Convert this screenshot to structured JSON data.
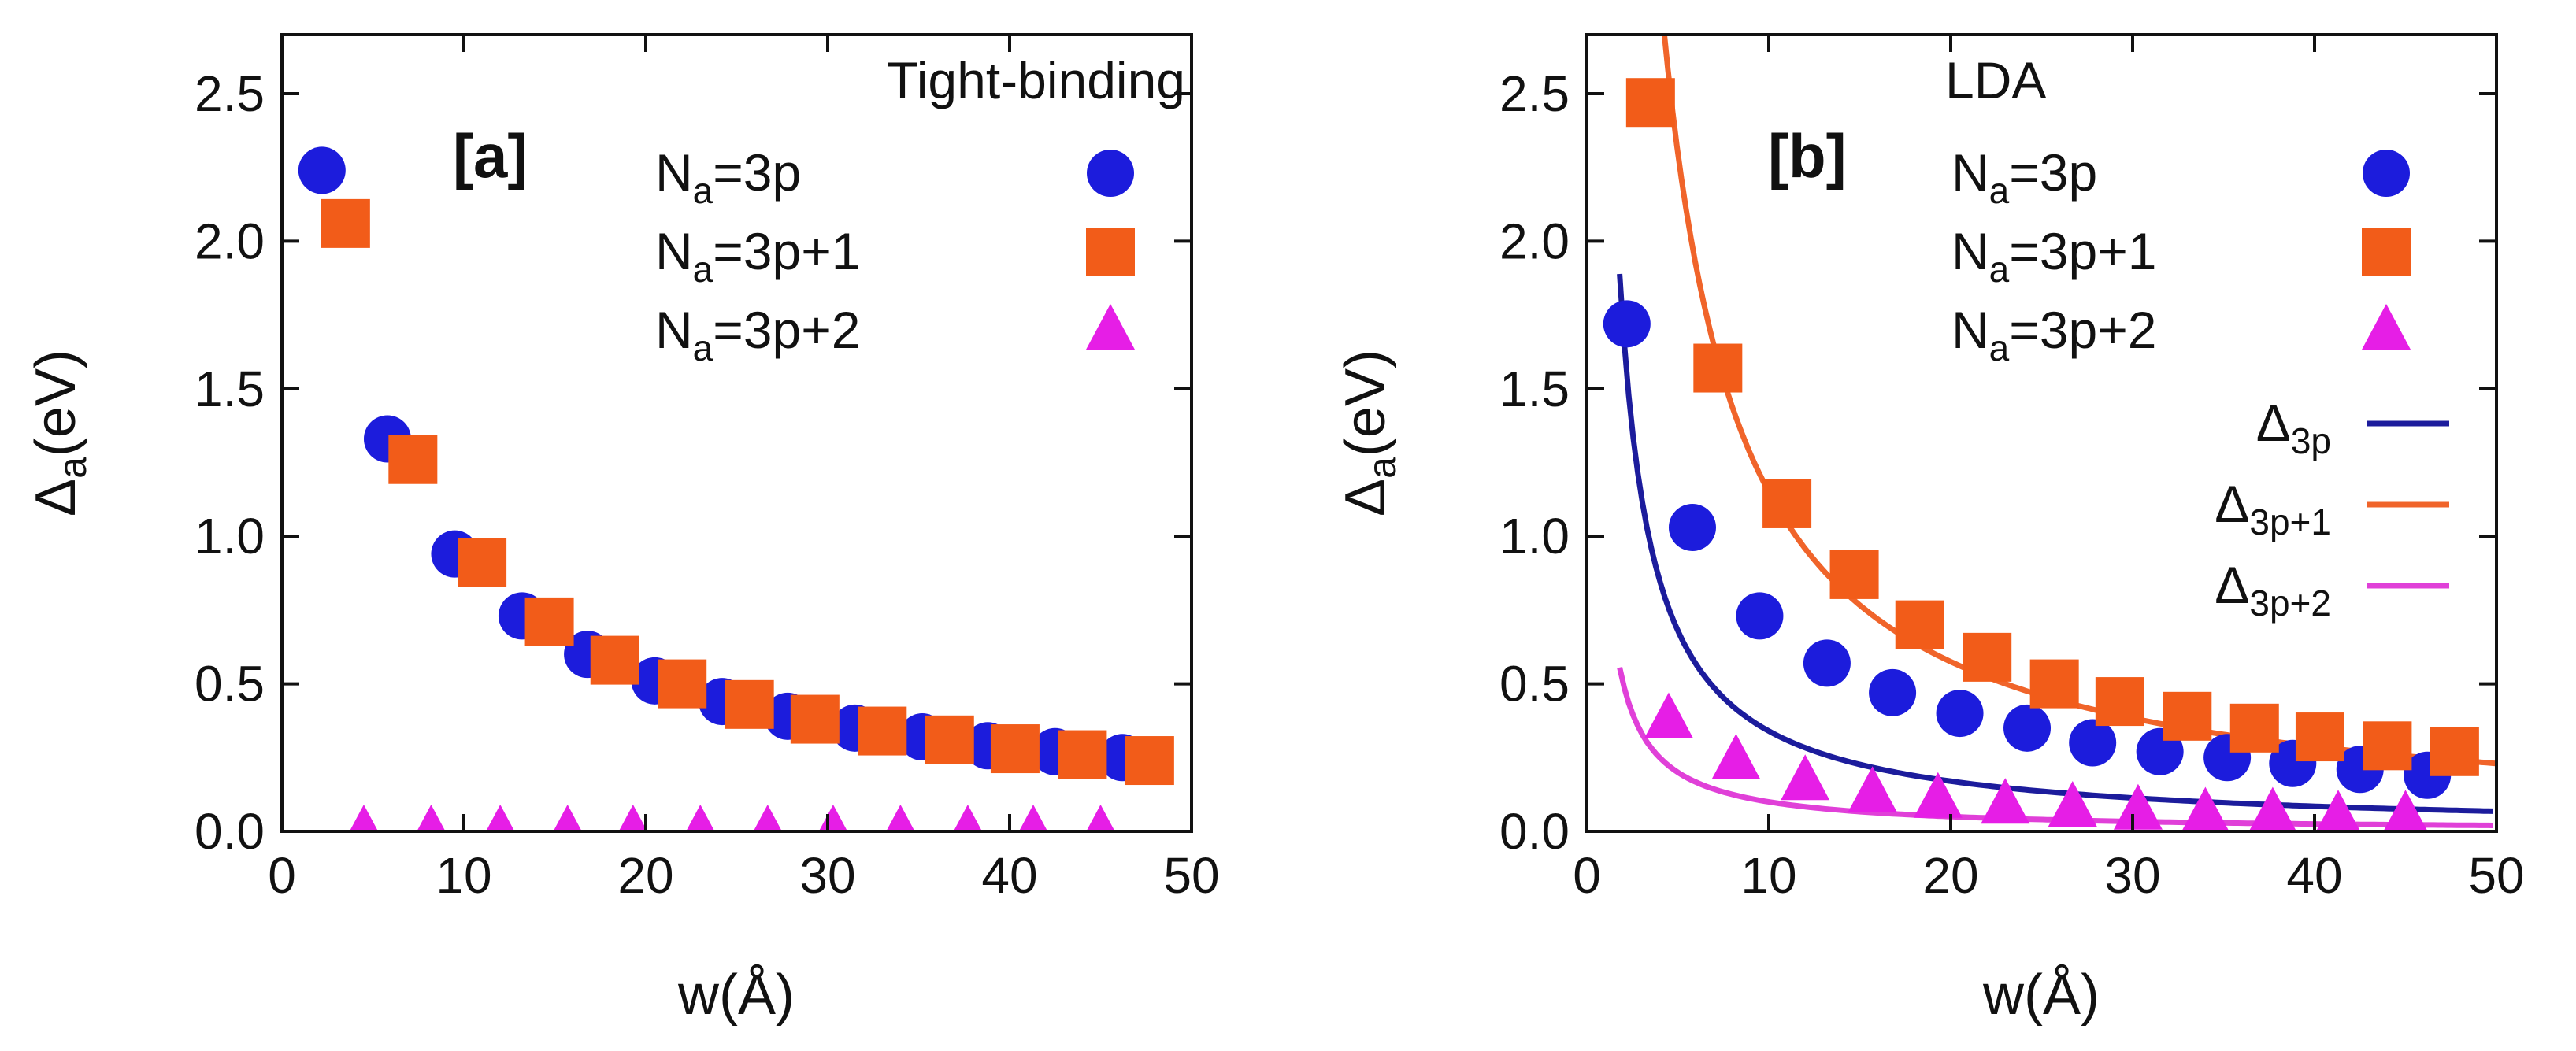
{
  "colors": {
    "circle": "#1c1cdc",
    "square": "#f25c19",
    "triangle": "#e61ee6",
    "line_3p": "#1c1c9c",
    "line_3p1": "#f0642a",
    "line_3p2": "#e040d8"
  },
  "chart_data": [
    {
      "type": "scatter",
      "panel": "[a]",
      "title": "Tight-binding",
      "xlabel": "w(Å)",
      "ylabel_main": "Δ",
      "ylabel_sub": "a",
      "ylabel_tail": "(eV)",
      "xlim": [
        0,
        50
      ],
      "ylim": [
        0,
        2.7
      ],
      "xticks": [
        "0",
        "10",
        "20",
        "30",
        "40",
        "50"
      ],
      "yticks": [
        "0.0",
        "0.5",
        "1.0",
        "1.5",
        "2.0",
        "2.5"
      ],
      "xtick_values": [
        0,
        10,
        20,
        30,
        40,
        50
      ],
      "ytick_values": [
        0,
        0.5,
        1.0,
        1.5,
        2.0,
        2.5
      ],
      "series": [
        {
          "name": "3p",
          "label_pre": "N",
          "label_sub": "a",
          "label_post": "=3p",
          "marker": "circle",
          "x": [
            2.2,
            5.8,
            9.5,
            13.2,
            16.8,
            20.5,
            24.2,
            27.8,
            31.5,
            35.2,
            38.8,
            42.5,
            46.2
          ],
          "y": [
            2.24,
            1.33,
            0.94,
            0.73,
            0.6,
            0.51,
            0.44,
            0.39,
            0.35,
            0.32,
            0.29,
            0.27,
            0.25
          ]
        },
        {
          "name": "3p+1",
          "label_pre": "N",
          "label_sub": "a",
          "label_post": "=3p+1",
          "marker": "square",
          "x": [
            3.5,
            7.2,
            11.0,
            14.7,
            18.3,
            22.0,
            25.7,
            29.3,
            33.0,
            36.7,
            40.3,
            44.0,
            47.7
          ],
          "y": [
            2.06,
            1.26,
            0.91,
            0.71,
            0.58,
            0.5,
            0.43,
            0.38,
            0.34,
            0.31,
            0.28,
            0.26,
            0.24
          ]
        },
        {
          "name": "3p+2",
          "label_pre": "N",
          "label_sub": "a",
          "label_post": "=3p+2",
          "marker": "triangle",
          "x": [
            4.5,
            8.2,
            12.0,
            15.7,
            19.3,
            23.0,
            26.7,
            30.3,
            34.0,
            37.7,
            41.3,
            45.0
          ],
          "y": [
            0.0,
            0.0,
            0.0,
            0.0,
            0.0,
            0.0,
            0.0,
            0.0,
            0.0,
            0.0,
            0.0,
            0.0
          ]
        }
      ]
    },
    {
      "type": "scatter",
      "panel": "[b]",
      "title": "LDA",
      "xlabel": "w(Å)",
      "ylabel_main": "Δ",
      "ylabel_sub": "a",
      "ylabel_tail": "(eV)",
      "xlim": [
        0,
        50
      ],
      "ylim": [
        0,
        2.7
      ],
      "xticks": [
        "0",
        "10",
        "20",
        "30",
        "40",
        "50"
      ],
      "yticks": [
        "0.0",
        "0.5",
        "1.0",
        "1.5",
        "2.0",
        "2.5"
      ],
      "xtick_values": [
        0,
        10,
        20,
        30,
        40,
        50
      ],
      "ytick_values": [
        0,
        0.5,
        1.0,
        1.5,
        2.0,
        2.5
      ],
      "series": [
        {
          "name": "3p",
          "label_pre": "N",
          "label_sub": "a",
          "label_post": "=3p",
          "marker": "circle",
          "x": [
            2.2,
            5.8,
            9.5,
            13.2,
            16.8,
            20.5,
            24.2,
            27.8,
            31.5,
            35.2,
            38.8,
            42.5,
            46.2
          ],
          "y": [
            1.72,
            1.03,
            0.73,
            0.57,
            0.47,
            0.4,
            0.35,
            0.3,
            0.27,
            0.25,
            0.23,
            0.21,
            0.19
          ]
        },
        {
          "name": "3p+1",
          "label_pre": "N",
          "label_sub": "a",
          "label_post": "=3p+1",
          "marker": "square",
          "x": [
            3.5,
            7.2,
            11.0,
            14.7,
            18.3,
            22.0,
            25.7,
            29.3,
            33.0,
            36.7,
            40.3,
            44.0,
            47.7
          ],
          "y": [
            2.47,
            1.57,
            1.11,
            0.87,
            0.7,
            0.59,
            0.5,
            0.44,
            0.39,
            0.35,
            0.32,
            0.29,
            0.27
          ]
        },
        {
          "name": "3p+2",
          "label_pre": "N",
          "label_sub": "a",
          "label_post": "=3p+2",
          "marker": "triangle",
          "x": [
            4.5,
            8.2,
            12.0,
            15.7,
            19.3,
            23.0,
            26.7,
            30.3,
            34.0,
            37.7,
            41.3,
            45.0
          ],
          "y": [
            0.38,
            0.24,
            0.17,
            0.13,
            0.11,
            0.09,
            0.08,
            0.07,
            0.06,
            0.06,
            0.05,
            0.05
          ]
        }
      ],
      "fits": [
        {
          "name": "Δ3p",
          "label_main": "Δ",
          "label_sub": "3p",
          "color_key": "line_3p",
          "A": 3.4,
          "x_start": 1.8
        },
        {
          "name": "Δ3p+1",
          "label_main": "Δ",
          "label_sub": "3p+1",
          "color_key": "line_3p1",
          "A": 11.5,
          "x_start": 3.2
        },
        {
          "name": "Δ3p+2",
          "label_main": "Δ",
          "label_sub": "3p+2",
          "color_key": "line_3p2",
          "A": 1.0,
          "x_start": 1.8
        }
      ]
    }
  ]
}
